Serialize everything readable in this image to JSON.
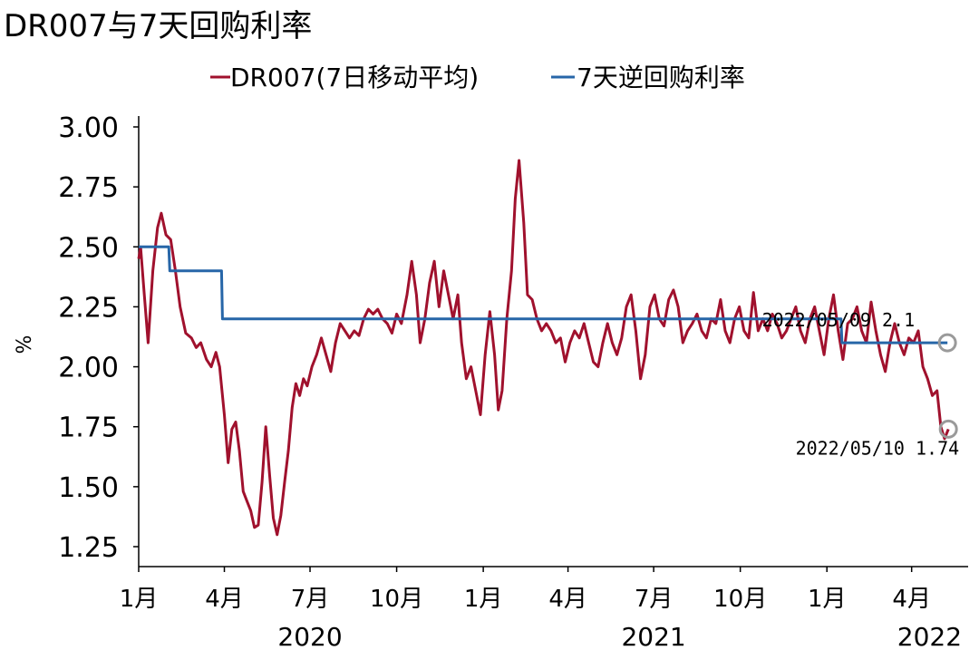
{
  "chart_data": {
    "type": "line",
    "title": "DR007与7天回购利率",
    "ylabel": "%",
    "ylim": [
      1.25,
      3.0
    ],
    "yticks": [
      "3.00",
      "2.75",
      "2.50",
      "2.25",
      "2.00",
      "1.75",
      "1.50",
      "1.25"
    ],
    "ytick_values": [
      3.0,
      2.75,
      2.5,
      2.25,
      2.0,
      1.75,
      1.5,
      1.25
    ],
    "xlim": [
      "2020-01-01",
      "2022-05-31"
    ],
    "xticks": [
      {
        "date": "2020-01-01",
        "label": "1月"
      },
      {
        "date": "2020-04-01",
        "label": "4月"
      },
      {
        "date": "2020-07-01",
        "label": "7月"
      },
      {
        "date": "2020-10-01",
        "label": "10月"
      },
      {
        "date": "2021-01-01",
        "label": "1月"
      },
      {
        "date": "2021-04-01",
        "label": "4月"
      },
      {
        "date": "2021-07-01",
        "label": "7月"
      },
      {
        "date": "2021-10-01",
        "label": "10月"
      },
      {
        "date": "2022-01-01",
        "label": "1月"
      },
      {
        "date": "2022-04-01",
        "label": "4月"
      }
    ],
    "year_labels": [
      {
        "date": "2020-07-01",
        "label": "2020"
      },
      {
        "date": "2021-07-01",
        "label": "2021"
      },
      {
        "date": "2022-04-20",
        "label": "2022"
      }
    ],
    "legend_position": "top",
    "grid": false,
    "series": [
      {
        "name": "DR007(7日移动平均)",
        "color": "#a0112d",
        "points": [
          [
            "2020-01-01",
            2.45
          ],
          [
            "2020-01-03",
            2.5
          ],
          [
            "2020-01-07",
            2.3
          ],
          [
            "2020-01-11",
            2.1
          ],
          [
            "2020-01-16",
            2.4
          ],
          [
            "2020-01-21",
            2.58
          ],
          [
            "2020-01-25",
            2.64
          ],
          [
            "2020-01-30",
            2.55
          ],
          [
            "2020-02-04",
            2.53
          ],
          [
            "2020-02-09",
            2.4
          ],
          [
            "2020-02-14",
            2.25
          ],
          [
            "2020-02-20",
            2.14
          ],
          [
            "2020-02-26",
            2.12
          ],
          [
            "2020-03-02",
            2.08
          ],
          [
            "2020-03-07",
            2.1
          ],
          [
            "2020-03-13",
            2.03
          ],
          [
            "2020-03-18",
            2.0
          ],
          [
            "2020-03-23",
            2.06
          ],
          [
            "2020-03-27",
            2.0
          ],
          [
            "2020-04-01",
            1.8
          ],
          [
            "2020-04-05",
            1.6
          ],
          [
            "2020-04-09",
            1.74
          ],
          [
            "2020-04-13",
            1.77
          ],
          [
            "2020-04-17",
            1.65
          ],
          [
            "2020-04-21",
            1.48
          ],
          [
            "2020-04-25",
            1.44
          ],
          [
            "2020-04-29",
            1.4
          ],
          [
            "2020-05-03",
            1.33
          ],
          [
            "2020-05-07",
            1.34
          ],
          [
            "2020-05-11",
            1.52
          ],
          [
            "2020-05-15",
            1.75
          ],
          [
            "2020-05-19",
            1.55
          ],
          [
            "2020-05-23",
            1.37
          ],
          [
            "2020-05-27",
            1.3
          ],
          [
            "2020-05-31",
            1.38
          ],
          [
            "2020-06-04",
            1.52
          ],
          [
            "2020-06-08",
            1.65
          ],
          [
            "2020-06-12",
            1.83
          ],
          [
            "2020-06-16",
            1.93
          ],
          [
            "2020-06-20",
            1.88
          ],
          [
            "2020-06-24",
            1.95
          ],
          [
            "2020-06-28",
            1.92
          ],
          [
            "2020-07-03",
            2.0
          ],
          [
            "2020-07-08",
            2.05
          ],
          [
            "2020-07-13",
            2.12
          ],
          [
            "2020-07-18",
            2.05
          ],
          [
            "2020-07-23",
            1.98
          ],
          [
            "2020-07-28",
            2.1
          ],
          [
            "2020-08-02",
            2.18
          ],
          [
            "2020-08-07",
            2.15
          ],
          [
            "2020-08-12",
            2.12
          ],
          [
            "2020-08-17",
            2.15
          ],
          [
            "2020-08-22",
            2.13
          ],
          [
            "2020-08-27",
            2.2
          ],
          [
            "2020-09-01",
            2.24
          ],
          [
            "2020-09-06",
            2.22
          ],
          [
            "2020-09-11",
            2.24
          ],
          [
            "2020-09-16",
            2.2
          ],
          [
            "2020-09-21",
            2.18
          ],
          [
            "2020-09-26",
            2.14
          ],
          [
            "2020-10-01",
            2.22
          ],
          [
            "2020-10-06",
            2.18
          ],
          [
            "2020-10-12",
            2.3
          ],
          [
            "2020-10-17",
            2.44
          ],
          [
            "2020-10-22",
            2.3
          ],
          [
            "2020-10-26",
            2.1
          ],
          [
            "2020-10-31",
            2.2
          ],
          [
            "2020-11-05",
            2.35
          ],
          [
            "2020-11-10",
            2.44
          ],
          [
            "2020-11-15",
            2.25
          ],
          [
            "2020-11-20",
            2.4
          ],
          [
            "2020-11-25",
            2.3
          ],
          [
            "2020-11-30",
            2.2
          ],
          [
            "2020-12-05",
            2.3
          ],
          [
            "2020-12-09",
            2.1
          ],
          [
            "2020-12-14",
            1.95
          ],
          [
            "2020-12-19",
            2.0
          ],
          [
            "2020-12-24",
            1.9
          ],
          [
            "2020-12-29",
            1.8
          ],
          [
            "2021-01-03",
            2.05
          ],
          [
            "2021-01-08",
            2.23
          ],
          [
            "2021-01-13",
            2.05
          ],
          [
            "2021-01-17",
            1.82
          ],
          [
            "2021-01-21",
            1.9
          ],
          [
            "2021-01-26",
            2.2
          ],
          [
            "2021-01-31",
            2.4
          ],
          [
            "2021-02-04",
            2.7
          ],
          [
            "2021-02-08",
            2.86
          ],
          [
            "2021-02-13",
            2.6
          ],
          [
            "2021-02-17",
            2.3
          ],
          [
            "2021-02-22",
            2.28
          ],
          [
            "2021-02-27",
            2.2
          ],
          [
            "2021-03-04",
            2.15
          ],
          [
            "2021-03-09",
            2.18
          ],
          [
            "2021-03-14",
            2.15
          ],
          [
            "2021-03-19",
            2.1
          ],
          [
            "2021-03-24",
            2.12
          ],
          [
            "2021-03-29",
            2.02
          ],
          [
            "2021-04-03",
            2.1
          ],
          [
            "2021-04-08",
            2.15
          ],
          [
            "2021-04-13",
            2.12
          ],
          [
            "2021-04-18",
            2.18
          ],
          [
            "2021-04-23",
            2.1
          ],
          [
            "2021-04-28",
            2.02
          ],
          [
            "2021-05-03",
            2.0
          ],
          [
            "2021-05-08",
            2.1
          ],
          [
            "2021-05-13",
            2.18
          ],
          [
            "2021-05-18",
            2.1
          ],
          [
            "2021-05-23",
            2.05
          ],
          [
            "2021-05-28",
            2.12
          ],
          [
            "2021-06-02",
            2.25
          ],
          [
            "2021-06-07",
            2.3
          ],
          [
            "2021-06-12",
            2.15
          ],
          [
            "2021-06-17",
            1.95
          ],
          [
            "2021-06-22",
            2.05
          ],
          [
            "2021-06-27",
            2.25
          ],
          [
            "2021-07-02",
            2.3
          ],
          [
            "2021-07-07",
            2.2
          ],
          [
            "2021-07-12",
            2.17
          ],
          [
            "2021-07-17",
            2.28
          ],
          [
            "2021-07-22",
            2.32
          ],
          [
            "2021-07-27",
            2.25
          ],
          [
            "2021-08-01",
            2.1
          ],
          [
            "2021-08-06",
            2.15
          ],
          [
            "2021-08-11",
            2.18
          ],
          [
            "2021-08-16",
            2.22
          ],
          [
            "2021-08-21",
            2.15
          ],
          [
            "2021-08-26",
            2.12
          ],
          [
            "2021-08-31",
            2.2
          ],
          [
            "2021-09-05",
            2.18
          ],
          [
            "2021-09-10",
            2.28
          ],
          [
            "2021-09-15",
            2.15
          ],
          [
            "2021-09-20",
            2.1
          ],
          [
            "2021-09-25",
            2.2
          ],
          [
            "2021-09-30",
            2.25
          ],
          [
            "2021-10-05",
            2.15
          ],
          [
            "2021-10-10",
            2.12
          ],
          [
            "2021-10-15",
            2.31
          ],
          [
            "2021-10-20",
            2.15
          ],
          [
            "2021-10-25",
            2.2
          ],
          [
            "2021-10-30",
            2.15
          ],
          [
            "2021-11-04",
            2.22
          ],
          [
            "2021-11-09",
            2.18
          ],
          [
            "2021-11-14",
            2.12
          ],
          [
            "2021-11-19",
            2.15
          ],
          [
            "2021-11-24",
            2.2
          ],
          [
            "2021-11-29",
            2.25
          ],
          [
            "2021-12-04",
            2.15
          ],
          [
            "2021-12-09",
            2.1
          ],
          [
            "2021-12-14",
            2.2
          ],
          [
            "2021-12-19",
            2.25
          ],
          [
            "2021-12-24",
            2.15
          ],
          [
            "2021-12-29",
            2.05
          ],
          [
            "2022-01-03",
            2.2
          ],
          [
            "2022-01-08",
            2.3
          ],
          [
            "2022-01-13",
            2.15
          ],
          [
            "2022-01-18",
            2.03
          ],
          [
            "2022-01-23",
            2.18
          ],
          [
            "2022-01-28",
            2.2
          ],
          [
            "2022-02-02",
            2.25
          ],
          [
            "2022-02-07",
            2.15
          ],
          [
            "2022-02-12",
            2.1
          ],
          [
            "2022-02-17",
            2.27
          ],
          [
            "2022-02-22",
            2.15
          ],
          [
            "2022-02-27",
            2.05
          ],
          [
            "2022-03-04",
            1.98
          ],
          [
            "2022-03-09",
            2.1
          ],
          [
            "2022-03-14",
            2.18
          ],
          [
            "2022-03-19",
            2.1
          ],
          [
            "2022-03-24",
            2.05
          ],
          [
            "2022-03-29",
            2.12
          ],
          [
            "2022-04-03",
            2.1
          ],
          [
            "2022-04-08",
            2.15
          ],
          [
            "2022-04-13",
            2.0
          ],
          [
            "2022-04-18",
            1.95
          ],
          [
            "2022-04-23",
            1.88
          ],
          [
            "2022-04-28",
            1.9
          ],
          [
            "2022-05-02",
            1.75
          ],
          [
            "2022-05-06",
            1.7
          ],
          [
            "2022-05-10",
            1.74
          ]
        ]
      },
      {
        "name": "7天逆回购利率",
        "color": "#2766a8",
        "points": [
          [
            "2020-01-01",
            2.5
          ],
          [
            "2020-02-02",
            2.5
          ],
          [
            "2020-02-03",
            2.4
          ],
          [
            "2020-03-29",
            2.4
          ],
          [
            "2020-03-30",
            2.2
          ],
          [
            "2022-01-16",
            2.2
          ],
          [
            "2022-01-17",
            2.1
          ],
          [
            "2022-05-09",
            2.1
          ]
        ]
      }
    ],
    "annotations": [
      {
        "series": 1,
        "date": "2022-05-09",
        "value": 2.1,
        "label": "2022/05/09 2.1",
        "position": "above-left"
      },
      {
        "series": 0,
        "date": "2022-05-10",
        "value": 1.74,
        "label": "2022/05/10 1.74",
        "position": "below-left"
      }
    ]
  }
}
